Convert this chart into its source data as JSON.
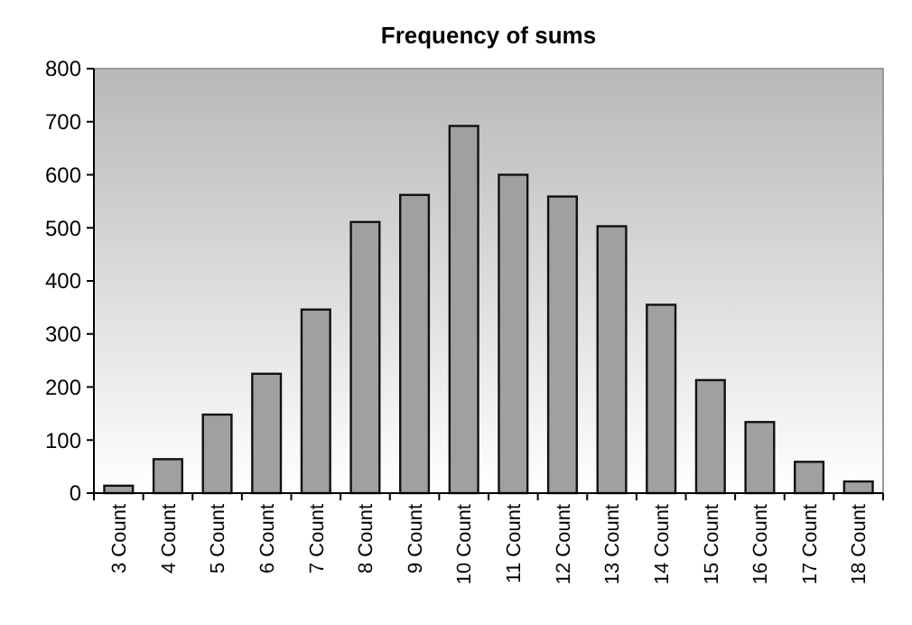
{
  "chart_data": {
    "type": "bar",
    "title": "Frequency of sums",
    "categories": [
      "3 Count",
      "4 Count",
      "5 Count",
      "6 Count",
      "7 Count",
      "8 Count",
      "9 Count",
      "10 Count",
      "11 Count",
      "12 Count",
      "13 Count",
      "14 Count",
      "15 Count",
      "16 Count",
      "17 Count",
      "18 Count"
    ],
    "values": [
      14,
      64,
      148,
      225,
      346,
      511,
      562,
      692,
      600,
      559,
      503,
      355,
      213,
      134,
      59,
      22
    ],
    "color": "#a0a0a0",
    "ylim": [
      0,
      800
    ],
    "yticks": [
      0,
      100,
      200,
      300,
      400,
      500,
      600,
      700,
      800
    ],
    "grid": false
  }
}
